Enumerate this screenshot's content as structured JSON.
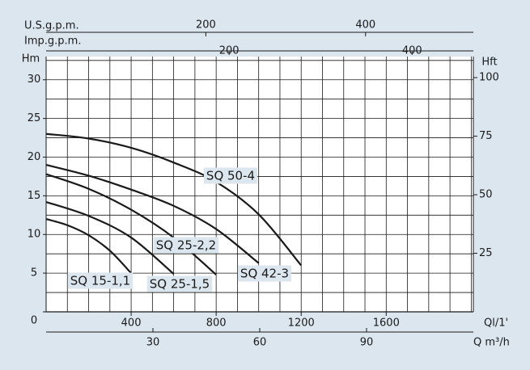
{
  "chart_data": {
    "type": "line",
    "grid": true,
    "x_label": "Ql/1'",
    "xlim": [
      0,
      2010
    ],
    "xticks": [
      400,
      800,
      1200,
      1600
    ],
    "minor_xticks": [
      100,
      200,
      300,
      400,
      500,
      600,
      700,
      800,
      900,
      1000,
      1100,
      1200,
      1300,
      1400,
      1500,
      1600,
      1700,
      1800,
      1900,
      2000
    ],
    "y_label": "Hm",
    "ylim": [
      0,
      33
    ],
    "yticks": [
      0,
      5,
      10,
      15,
      20,
      25,
      30
    ],
    "minor_yticks": [
      2.5,
      5,
      7.5,
      10,
      12.5,
      15,
      17.5,
      20,
      22.5,
      25,
      27.5,
      30,
      32.5
    ],
    "y2_label": "Hft",
    "y2lim": [
      0,
      109
    ],
    "y2ticks": [
      25,
      50,
      75,
      100
    ],
    "extra_x_axes": [
      {
        "label": "Q m³/h",
        "lim": [
          0,
          120
        ],
        "ticks": [
          30,
          60,
          90
        ]
      },
      {
        "label": "U.S.g.p.m.",
        "lim": [
          0,
          535
        ],
        "ticks": [
          200,
          400
        ]
      },
      {
        "label": "Imp.g.p.m.",
        "lim": [
          0,
          467
        ],
        "ticks": [
          200,
          400
        ]
      }
    ],
    "series": [
      {
        "name": "SQ 50-4",
        "color": "#1a1a1a",
        "x": [
          0,
          200,
          400,
          600,
          800,
          1000,
          1200
        ],
        "values": [
          23,
          22.4,
          21.2,
          19.3,
          16.8,
          12.6,
          6
        ]
      },
      {
        "name": "SQ 42-3",
        "color": "#1a1a1a",
        "x": [
          0,
          200,
          400,
          600,
          800,
          1000
        ],
        "values": [
          19,
          17.6,
          15.8,
          13.7,
          10.7,
          6.3
        ]
      },
      {
        "name": "SQ 25-2,2",
        "color": "#1a1a1a",
        "x": [
          0,
          200,
          400,
          600,
          800
        ],
        "values": [
          17.8,
          15.9,
          13.2,
          9.6,
          4.8
        ]
      },
      {
        "name": "SQ 25-1,5",
        "color": "#1a1a1a",
        "x": [
          0,
          200,
          400,
          600
        ],
        "values": [
          14.2,
          12.4,
          9.6,
          4.9
        ]
      },
      {
        "name": "SQ 15-1,1",
        "color": "#1a1a1a",
        "x": [
          0,
          100,
          200,
          300,
          400
        ],
        "values": [
          12,
          11.2,
          9.9,
          7.9,
          5
        ]
      }
    ]
  }
}
